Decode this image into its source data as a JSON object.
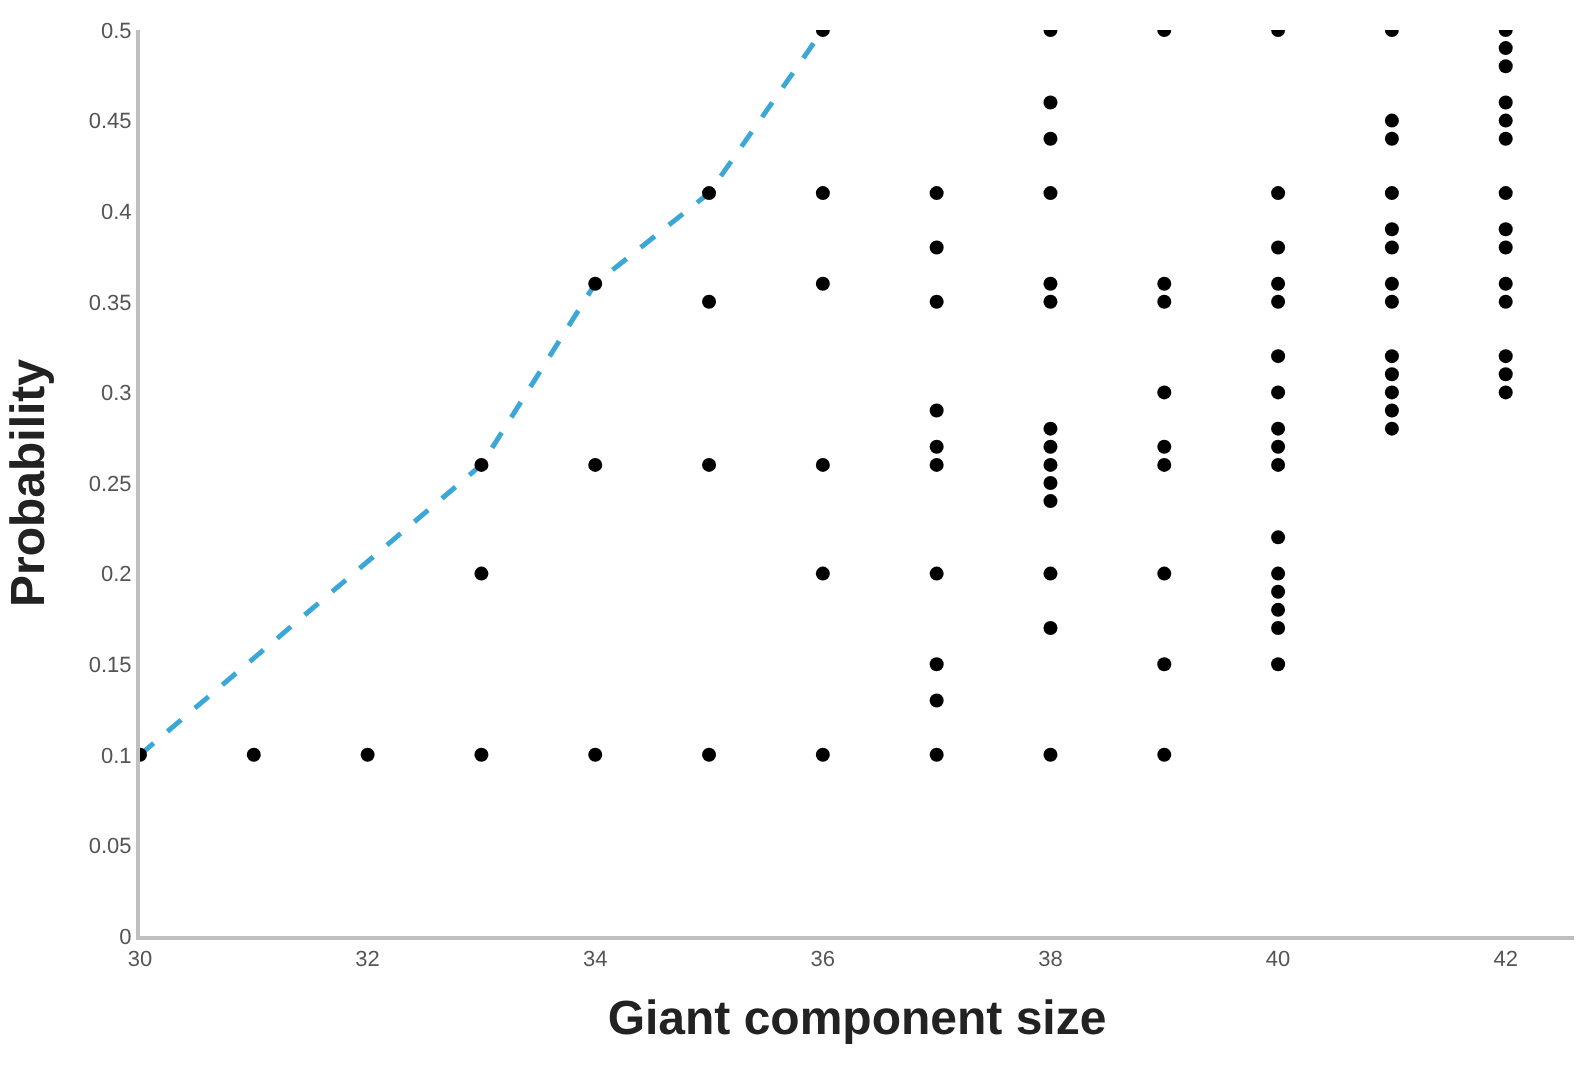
{
  "chart_data": {
    "type": "scatter",
    "xlabel": "Giant component size",
    "ylabel": "Probability",
    "xlim": [
      30,
      42.6
    ],
    "xticks": [
      30,
      32,
      34,
      36,
      38,
      40,
      42
    ],
    "ylim": [
      0,
      0.5
    ],
    "yticks": [
      0,
      0.05,
      0.1,
      0.15,
      0.2,
      0.25,
      0.3,
      0.35,
      0.4,
      0.45,
      0.5
    ],
    "series": [
      {
        "marker": "circle",
        "color": "#000000",
        "x": [
          30,
          31,
          32,
          33,
          33,
          33,
          34,
          34,
          34,
          35,
          35,
          35,
          35,
          36,
          36,
          36,
          36,
          36,
          36,
          37,
          37,
          37,
          37,
          37,
          37,
          37,
          37,
          37,
          37,
          38,
          38,
          38,
          38,
          38,
          38,
          38,
          38,
          38,
          38,
          38,
          38,
          38,
          38,
          39,
          39,
          39,
          39,
          39,
          39,
          39,
          39,
          39,
          40,
          40,
          40,
          40,
          40,
          40,
          40,
          40,
          40,
          40,
          40,
          40,
          40,
          40,
          40,
          40,
          41,
          41,
          41,
          41,
          41,
          41,
          41,
          41,
          41,
          41,
          41,
          41,
          41,
          42,
          42,
          42,
          42,
          42,
          42,
          42,
          42,
          42,
          42,
          42,
          42,
          42,
          42
        ],
        "values": [
          0.1,
          0.1,
          0.1,
          0.1,
          0.2,
          0.26,
          0.1,
          0.26,
          0.36,
          0.1,
          0.26,
          0.35,
          0.41,
          0.1,
          0.2,
          0.26,
          0.36,
          0.41,
          0.5,
          0.41,
          0.38,
          0.35,
          0.29,
          0.27,
          0.26,
          0.2,
          0.15,
          0.13,
          0.1,
          0.5,
          0.46,
          0.44,
          0.41,
          0.36,
          0.35,
          0.28,
          0.27,
          0.26,
          0.25,
          0.24,
          0.2,
          0.17,
          0.1,
          0.5,
          0.36,
          0.35,
          0.3,
          0.27,
          0.26,
          0.2,
          0.15,
          0.1,
          0.5,
          0.41,
          0.38,
          0.36,
          0.35,
          0.32,
          0.3,
          0.28,
          0.27,
          0.26,
          0.22,
          0.2,
          0.19,
          0.18,
          0.17,
          0.15,
          0.5,
          0.45,
          0.44,
          0.41,
          0.39,
          0.38,
          0.36,
          0.35,
          0.32,
          0.31,
          0.3,
          0.29,
          0.28,
          0.5,
          0.49,
          0.48,
          0.46,
          0.45,
          0.44,
          0.41,
          0.39,
          0.38,
          0.36,
          0.35,
          0.32,
          0.31,
          0.3
        ]
      },
      {
        "type": "line",
        "marker": "none",
        "line_style": "dashed",
        "color": "#3aa7d6",
        "x": [
          30,
          33,
          34,
          35,
          36
        ],
        "values": [
          0.1,
          0.26,
          0.36,
          0.41,
          0.5
        ]
      }
    ]
  }
}
